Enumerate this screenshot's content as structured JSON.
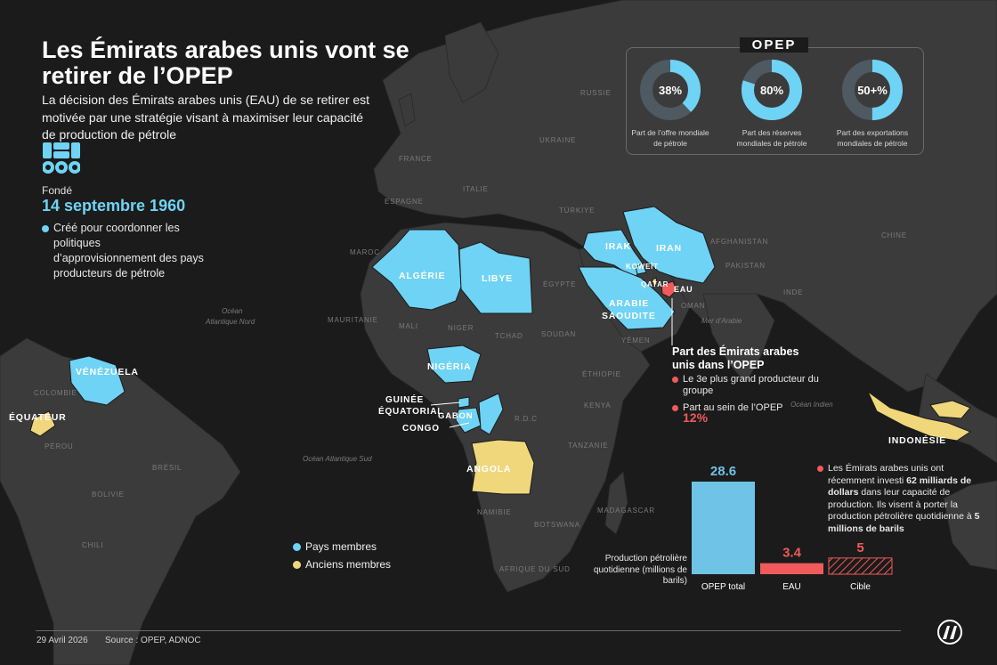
{
  "title": "Les Émirats arabes unis vont se retirer de l’OPEP",
  "subtitle": "La décision des Émirats arabes unis (EAU) de se retirer est motivée par une stratégie visant à maximiser leur capacité de production de pétrole",
  "founded": {
    "label": "Fondé",
    "date": "14 septembre 1960",
    "purpose": "Créé pour coordonner les politiques d’approvisionnement des pays producteurs de pétrole"
  },
  "opep_box": {
    "title": "OPEP",
    "stats": [
      {
        "value_label": "38%",
        "fraction": 0.38,
        "caption_1": "Part de l’offre mondiale",
        "caption_2": "de pétrole"
      },
      {
        "value_label": "80%",
        "fraction": 0.8,
        "caption_1": "Part des réserves",
        "caption_2": "mondiales de pétrole"
      },
      {
        "value_label": "50+%",
        "fraction": 0.5,
        "caption_1": "Part des exportations",
        "caption_2": "mondiales de pétrole"
      }
    ]
  },
  "members": [
    "ALGÉRIE",
    "LIBYE",
    "IRAK",
    "IRAN",
    "KOWEÏT",
    "ARABIE",
    "SAOUDITE",
    "VÉNÉZUELA",
    "NIGÉRIA",
    "GUINÉE",
    "ÉQUATORIAL",
    "GABON",
    "CONGO",
    "EAU"
  ],
  "former_members": [
    "ÉQUATEUR",
    "ANGOLA",
    "INDONÉSIE",
    "QATAR"
  ],
  "map_labels": {
    "countries": [
      "RUSSIE",
      "UKRAINE",
      "FRANCE",
      "ITALIE",
      "ESPAGNE",
      "TÜRKIYE",
      "CHINE",
      "AFGHANISTAN",
      "PAKISTAN",
      "INDE",
      "OMAN",
      "YÉMEN",
      "ÉGYPTE",
      "SOUDAN",
      "TCHAD",
      "MAROC",
      "MAURITANIE",
      "MALI",
      "NIGER",
      "ÉTHIOPIE",
      "KENYA",
      "TANZANIE",
      "R.D.C",
      "NAMIBIE",
      "BOTSWANA",
      "MADAGASCAR",
      "AFRIQUE DU SUD",
      "COLOMBIE",
      "PÉROU",
      "BRÉSIL",
      "BOLIVIE",
      "CHILI"
    ],
    "oceans": [
      "Océan",
      "Atlantique Nord",
      "Océan Atlantique Sud",
      "Mer d’Arabie",
      "Océan Indien"
    ]
  },
  "uae_panel": {
    "title": "Part des Émirats arabes unis dans l’OPEP",
    "item_1": "Le 3e plus grand producteur du groupe",
    "item_2": "Part au sein de l’OPEP",
    "share": "12%"
  },
  "investment_note": {
    "text_1": "Les Émirats arabes unis ont récemment investi ",
    "bold_1": "62 milliards de dollars",
    "text_2": " dans leur capacité de production. Ils visent à porter la production pétrolière quotidienne à ",
    "bold_2": "5 millions de barils"
  },
  "legend": {
    "members": "Pays membres",
    "former": "Anciens membres"
  },
  "chart_data": {
    "type": "bar",
    "ylabel": "Production pétrolière quotidienne (millions de barils)",
    "categories": [
      "OPEP total",
      "EAU",
      "Cible"
    ],
    "values": [
      28.6,
      3.4,
      5
    ],
    "value_labels": [
      "28.6",
      "3.4",
      "5"
    ]
  },
  "colors": {
    "member": "#6fd3f5",
    "former": "#f0d77c",
    "uae": "#f05a5a",
    "opep_bar": "#6ec3e6",
    "land": "#3b3b3b",
    "background": "#1b1b1b"
  },
  "footer": {
    "date": "29 Avril 2026",
    "source": "Source : OPEP, ADNOC"
  }
}
